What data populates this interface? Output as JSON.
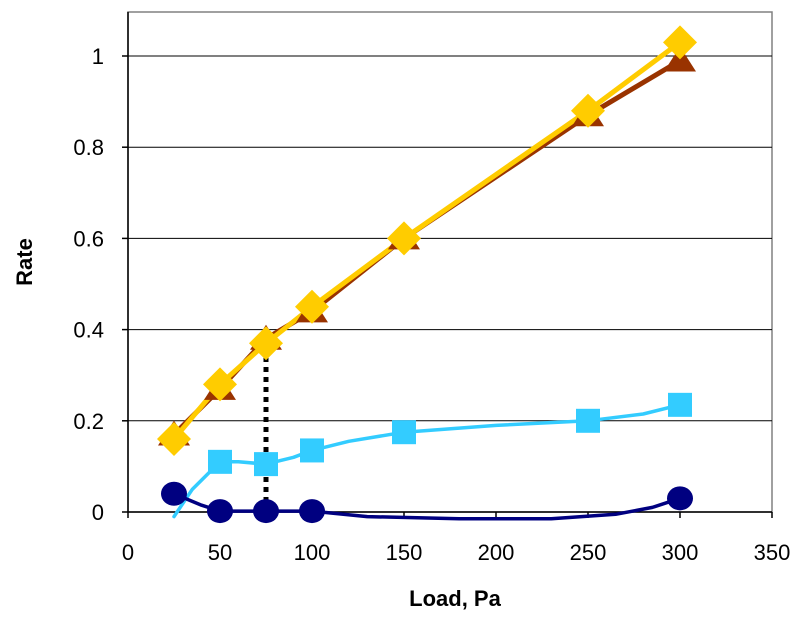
{
  "chart_data": {
    "type": "line",
    "title": "",
    "xlabel": "Load, Pa",
    "ylabel": "Rate",
    "xlim": [
      0,
      350
    ],
    "ylim": [
      0,
      1.1
    ],
    "x_ticks": [
      0,
      50,
      100,
      150,
      200,
      250,
      300,
      350
    ],
    "y_ticks": [
      0,
      0.2,
      0.4,
      0.6,
      0.8,
      1
    ],
    "x_tick_labels": [
      "0",
      "50",
      "100",
      "150",
      "200",
      "250",
      "300",
      "350"
    ],
    "y_tick_labels": [
      "0",
      "0.2",
      "0.4",
      "0.6",
      "0.8",
      "1"
    ],
    "grid": "horizontal",
    "legend": "none",
    "series": [
      {
        "marker": "triangle",
        "color": "#993300",
        "x": [
          25,
          50,
          75,
          100,
          150,
          250,
          300
        ],
        "y": [
          0.17,
          0.27,
          0.38,
          0.44,
          0.6,
          0.87,
          0.99
        ]
      },
      {
        "marker": "diamond",
        "color": "#FFCC00",
        "x": [
          25,
          50,
          75,
          100,
          150,
          250,
          300
        ],
        "y": [
          0.16,
          0.28,
          0.37,
          0.45,
          0.6,
          0.88,
          1.03
        ]
      },
      {
        "marker": "square",
        "color": "#33CCFF",
        "x": [
          50,
          75,
          100,
          150,
          250,
          300
        ],
        "y": [
          0.11,
          0.105,
          0.135,
          0.175,
          0.2,
          0.235
        ],
        "curve_x": [
          25,
          35,
          50,
          60,
          75,
          90,
          100,
          120,
          150,
          200,
          250,
          280,
          300
        ],
        "curve_y": [
          -0.01,
          0.05,
          0.11,
          0.11,
          0.105,
          0.12,
          0.135,
          0.155,
          0.175,
          0.19,
          0.2,
          0.215,
          0.235
        ]
      },
      {
        "marker": "circle",
        "color": "#000080",
        "x": [
          25,
          50,
          75,
          100,
          300
        ],
        "y": [
          0.04,
          0.002,
          0.002,
          0.002,
          0.03
        ],
        "curve_x": [
          25,
          40,
          50,
          75,
          100,
          130,
          180,
          230,
          265,
          285,
          300
        ],
        "curve_y": [
          0.04,
          0.015,
          0.002,
          0.002,
          0.002,
          -0.01,
          -0.015,
          -0.015,
          -0.005,
          0.01,
          0.03
        ]
      }
    ],
    "dotted_line": {
      "x": 75,
      "y_from": 0,
      "y_to": 0.37,
      "color": "#000000"
    }
  }
}
